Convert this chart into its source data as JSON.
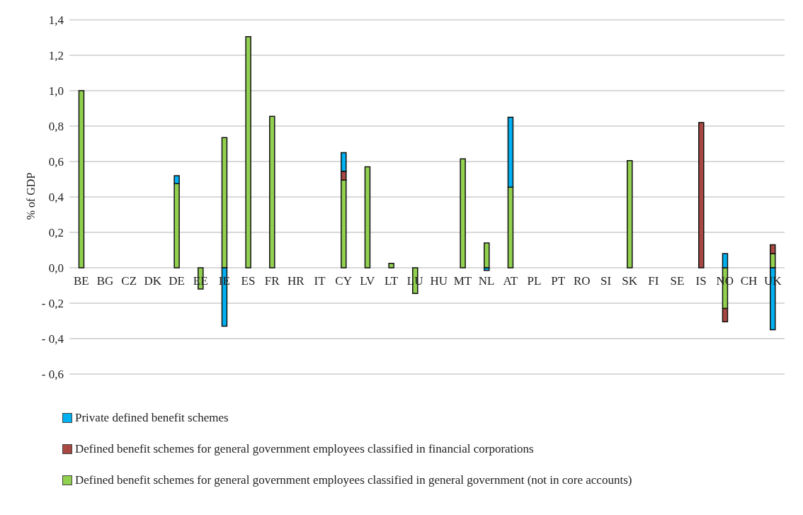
{
  "chart_data": {
    "type": "bar",
    "ylabel": "% of GDP",
    "stacked": true,
    "grid": "y",
    "legend": "bottom",
    "categories": [
      "BE",
      "BG",
      "CZ",
      "DK",
      "DE",
      "EE",
      "IE",
      "ES",
      "FR",
      "HR",
      "IT",
      "CY",
      "LV",
      "LT",
      "LU",
      "HU",
      "MT",
      "NL",
      "AT",
      "PL",
      "PT",
      "RO",
      "SI",
      "SK",
      "FI",
      "SE",
      "IS",
      "NO",
      "CH",
      "UK"
    ],
    "ylim": [
      -0.6,
      1.4
    ],
    "yticks": [
      {
        "value": -0.6,
        "label": "- 0,6"
      },
      {
        "value": -0.4,
        "label": "- 0,4"
      },
      {
        "value": -0.2,
        "label": "- 0,2"
      },
      {
        "value": 0,
        "label": "0,0"
      },
      {
        "value": 0.2,
        "label": "0,2"
      },
      {
        "value": 0.4,
        "label": "0,4"
      },
      {
        "value": 0.6,
        "label": "0,6"
      },
      {
        "value": 0.8,
        "label": "0,8"
      },
      {
        "value": 1.0,
        "label": "1,0"
      },
      {
        "value": 1.2,
        "label": "1,2"
      },
      {
        "value": 1.4,
        "label": "1,4"
      }
    ],
    "series": [
      {
        "name": "Defined benefit schemes for general government employees classified in general government (not in core accounts)",
        "color": "#92d050",
        "values": [
          1.0,
          null,
          null,
          null,
          0.475,
          -0.12,
          0.735,
          1.305,
          0.855,
          null,
          null,
          0.495,
          0.57,
          0.025,
          -0.145,
          null,
          0.615,
          0.14,
          0.455,
          null,
          null,
          null,
          null,
          0.605,
          null,
          null,
          null,
          -0.23,
          null,
          0.08
        ]
      },
      {
        "name": "Defined benefit schemes for general government employees classified in financial corporations",
        "color": "#a94843",
        "values": [
          null,
          null,
          null,
          null,
          null,
          null,
          null,
          null,
          null,
          null,
          null,
          0.05,
          null,
          null,
          null,
          null,
          null,
          null,
          null,
          null,
          null,
          null,
          null,
          null,
          null,
          null,
          0.82,
          -0.075,
          null,
          0.05
        ]
      },
      {
        "name": "Private defined benefit schemes",
        "color": "#00b0f0",
        "values": [
          null,
          null,
          null,
          null,
          0.045,
          null,
          -0.33,
          null,
          null,
          null,
          null,
          0.105,
          null,
          null,
          null,
          null,
          null,
          -0.015,
          0.395,
          null,
          null,
          null,
          null,
          null,
          null,
          null,
          null,
          0.08,
          null,
          -0.35
        ]
      }
    ]
  }
}
